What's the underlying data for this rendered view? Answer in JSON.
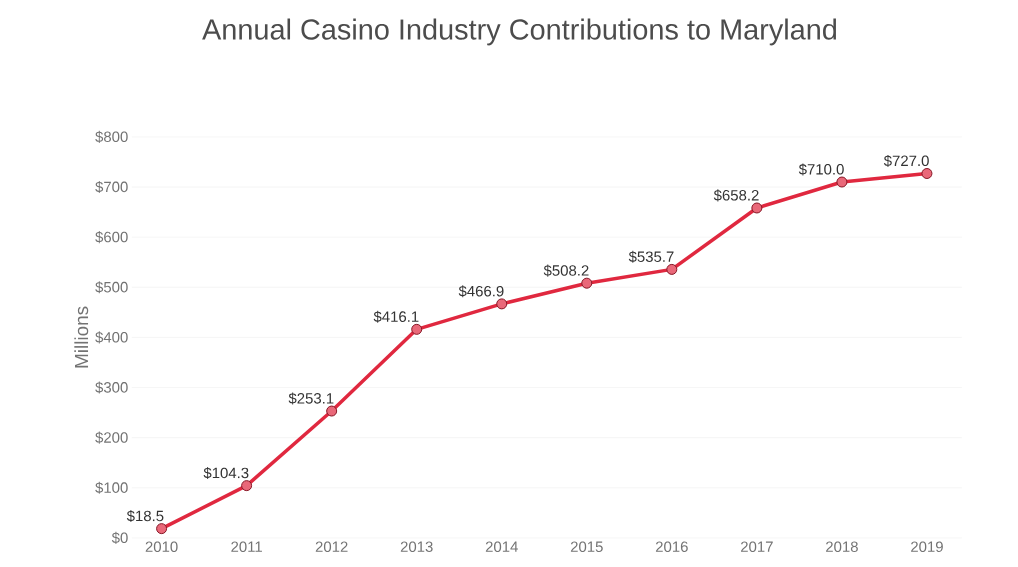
{
  "chart_data": {
    "type": "line",
    "title": "Annual Casino Industry Contributions to Maryland",
    "ylabel": "Millions",
    "categories": [
      "2010",
      "2011",
      "2012",
      "2013",
      "2014",
      "2015",
      "2016",
      "2017",
      "2018",
      "2019"
    ],
    "values": [
      18.5,
      104.3,
      253.1,
      416.1,
      466.9,
      508.2,
      535.7,
      658.2,
      710.0,
      727.0
    ],
    "value_labels": [
      "$18.5",
      "$104.3",
      "$253.1",
      "$416.1",
      "$466.9",
      "$508.2",
      "$535.7",
      "$658.2",
      "$710.0",
      "$727.0"
    ],
    "color": "#e0283f",
    "marker": "circle",
    "line_style": "solid",
    "grid": "y",
    "legend": false,
    "ylim": [
      0,
      800
    ],
    "yticks": [
      {
        "value": 0,
        "label": "$0"
      },
      {
        "value": 100,
        "label": "$100"
      },
      {
        "value": 200,
        "label": "$200"
      },
      {
        "value": 300,
        "label": "$300"
      },
      {
        "value": 400,
        "label": "$400"
      },
      {
        "value": 500,
        "label": "$500"
      },
      {
        "value": 600,
        "label": "$600"
      },
      {
        "value": 700,
        "label": "$700"
      },
      {
        "value": 800,
        "label": "$800"
      }
    ]
  }
}
